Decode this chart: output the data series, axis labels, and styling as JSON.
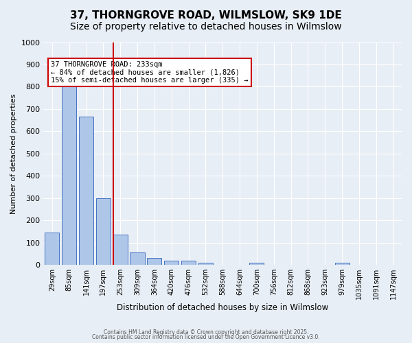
{
  "title": "37, THORNGROVE ROAD, WILMSLOW, SK9 1DE",
  "subtitle": "Size of property relative to detached houses in Wilmslow",
  "xlabel": "Distribution of detached houses by size in Wilmslow",
  "ylabel": "Number of detached properties",
  "categories": [
    "29sqm",
    "85sqm",
    "141sqm",
    "197sqm",
    "253sqm",
    "309sqm",
    "364sqm",
    "420sqm",
    "476sqm",
    "532sqm",
    "588sqm",
    "644sqm",
    "700sqm",
    "756sqm",
    "812sqm",
    "868sqm",
    "923sqm",
    "979sqm",
    "1035sqm",
    "1091sqm",
    "1147sqm"
  ],
  "values": [
    145,
    800,
    665,
    300,
    135,
    55,
    32,
    20,
    20,
    10,
    0,
    0,
    10,
    0,
    0,
    0,
    0,
    10,
    0,
    0,
    0
  ],
  "bar_color": "#aec6e8",
  "bar_edge_color": "#4472c4",
  "vline_x": 3.575,
  "vline_color": "#cc0000",
  "annotation_text": "37 THORNGROVE ROAD: 233sqm\n← 84% of detached houses are smaller (1,826)\n15% of semi-detached houses are larger (335) →",
  "annotation_box_color": "#cc0000",
  "annotation_bg": "#ffffff",
  "ylim": [
    0,
    1000
  ],
  "yticks": [
    0,
    100,
    200,
    300,
    400,
    500,
    600,
    700,
    800,
    900,
    1000
  ],
  "background_color": "#e8eef5",
  "plot_bg_color": "#e8eef5",
  "footer1": "Contains HM Land Registry data © Crown copyright and database right 2025.",
  "footer2": "Contains public sector information licensed under the Open Government Licence v3.0.",
  "title_fontsize": 11,
  "subtitle_fontsize": 10
}
